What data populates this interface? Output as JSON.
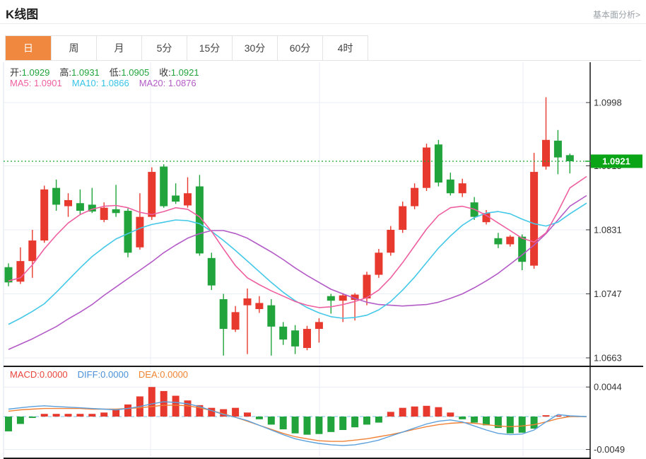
{
  "header": {
    "title": "K线图",
    "link": "基本面分析>"
  },
  "tabs": {
    "items": [
      "日",
      "周",
      "月",
      "5分",
      "15分",
      "30分",
      "60分",
      "4时"
    ],
    "active_index": 0
  },
  "legend": {
    "ohlc": [
      {
        "label": "开:",
        "value": "1.0929"
      },
      {
        "label": "高:",
        "value": "1.0931"
      },
      {
        "label": "低:",
        "value": "1.0905"
      },
      {
        "label": "收:",
        "value": "1.0921"
      }
    ],
    "ma": [
      {
        "label": "MA5:",
        "value": "1.0901",
        "color": "#ee5fa0"
      },
      {
        "label": "MA10:",
        "value": "1.0866",
        "color": "#36c3e6"
      },
      {
        "label": "MA20:",
        "value": "1.0876",
        "color": "#b35bc6"
      }
    ]
  },
  "macd_legend": [
    {
      "label": "MACD:",
      "value": "0.0000",
      "color": "#e8453c"
    },
    {
      "label": "DIFF:",
      "value": "0.0000",
      "color": "#4a90d9"
    },
    {
      "label": "DEA:",
      "value": "0.0000",
      "color": "#ef8432"
    }
  ],
  "price_badge": "1.0921",
  "colors": {
    "up_red": "#e8392e",
    "down_green": "#21a43c",
    "badge_green": "#0aa516",
    "price_line_green": "#19a82c",
    "ma5": "#ee5fa0",
    "ma10": "#44c8e8",
    "ma20": "#b35bc6",
    "diff_line": "#5ba0dc",
    "dea_line": "#f08238",
    "grid": "#e9eef4",
    "axis_text": "#333333",
    "border_dark": "#1a1a1a",
    "zero_dash": "#a9d6f0",
    "tab_active": "#f0883f"
  },
  "chart_data": {
    "type": "candlestick+macd",
    "title": "K线图",
    "last_price": 1.0921,
    "y_axis": {
      "ticks": [
        1.0998,
        1.0915,
        1.0831,
        1.0747,
        1.0663
      ],
      "hidden_tick_index": 1
    },
    "candles": [
      [
        1.0782,
        1.0787,
        1.0757,
        1.0762
      ],
      [
        1.0763,
        1.0808,
        1.076,
        1.079
      ],
      [
        1.079,
        1.0831,
        1.0768,
        1.0817
      ],
      [
        1.0817,
        1.0889,
        1.0814,
        1.0884
      ],
      [
        1.0886,
        1.0897,
        1.0856,
        1.0864
      ],
      [
        1.0862,
        1.0879,
        1.0848,
        1.087
      ],
      [
        1.0866,
        1.0884,
        1.0851,
        1.0856
      ],
      [
        1.0864,
        1.0886,
        1.0853,
        1.0855
      ],
      [
        1.0844,
        1.0867,
        1.0841,
        1.086
      ],
      [
        1.0858,
        1.089,
        1.0848,
        1.0853
      ],
      [
        1.0856,
        1.0859,
        1.0795,
        1.0801
      ],
      [
        1.0808,
        1.0879,
        1.0805,
        1.0848
      ],
      [
        1.0848,
        1.0913,
        1.0844,
        1.0907
      ],
      [
        1.0914,
        1.0917,
        1.086,
        1.0862
      ],
      [
        1.0876,
        1.0892,
        1.0865,
        1.0868
      ],
      [
        1.0863,
        1.09,
        1.086,
        1.0879
      ],
      [
        1.0888,
        1.0903,
        1.0797,
        1.08
      ],
      [
        1.0794,
        1.0801,
        1.0752,
        1.0758
      ],
      [
        1.074,
        1.0747,
        1.0666,
        1.0701
      ],
      [
        1.07,
        1.0731,
        1.0697,
        1.0723
      ],
      [
        1.0732,
        1.0754,
        1.0668,
        1.0741
      ],
      [
        1.0727,
        1.0744,
        1.0722,
        1.0735
      ],
      [
        1.0732,
        1.074,
        1.0666,
        1.0704
      ],
      [
        1.0704,
        1.071,
        1.068,
        1.0687
      ],
      [
        1.0699,
        1.0706,
        1.0668,
        1.0678
      ],
      [
        1.0676,
        1.0705,
        1.0673,
        1.0701
      ],
      [
        1.0701,
        1.0715,
        1.0683,
        1.071
      ],
      [
        1.0744,
        1.0747,
        1.0721,
        1.0738
      ],
      [
        1.0738,
        1.0748,
        1.071,
        1.0745
      ],
      [
        1.0739,
        1.0748,
        1.0712,
        1.0746
      ],
      [
        1.0741,
        1.0776,
        1.0732,
        1.0772
      ],
      [
        1.0772,
        1.0806,
        1.0768,
        1.0801
      ],
      [
        1.0801,
        1.0836,
        1.0797,
        1.0831
      ],
      [
        1.0831,
        1.0868,
        1.0827,
        1.0862
      ],
      [
        1.0862,
        1.0892,
        1.0858,
        1.0886
      ],
      [
        1.0886,
        1.0944,
        1.0882,
        1.0939
      ],
      [
        1.0943,
        1.0949,
        1.0888,
        1.0893
      ],
      [
        1.0897,
        1.0906,
        1.0876,
        1.0879
      ],
      [
        1.0879,
        1.0898,
        1.0874,
        1.0892
      ],
      [
        1.0867,
        1.0874,
        1.0844,
        1.0848
      ],
      [
        1.0841,
        1.0857,
        1.0838,
        1.0853
      ],
      [
        1.082,
        1.0827,
        1.0807,
        1.0812
      ],
      [
        1.0812,
        1.0824,
        1.0809,
        1.0822
      ],
      [
        1.0822,
        1.0825,
        1.0778,
        1.0789
      ],
      [
        1.0784,
        1.0932,
        1.078,
        1.0907
      ],
      [
        1.0914,
        1.1005,
        1.091,
        1.0949
      ],
      [
        1.0948,
        1.0962,
        1.0904,
        1.0926
      ],
      [
        1.0929,
        1.0931,
        1.0905,
        1.0921
      ]
    ],
    "ma5": [
      1.0764,
      1.0768,
      1.0785,
      1.0806,
      1.0824,
      1.084,
      1.0851,
      1.0858,
      1.0862,
      1.0863,
      1.086,
      1.0854,
      1.0851,
      1.0855,
      1.086,
      1.0858,
      1.0848,
      1.0829,
      1.0806,
      1.0784,
      1.0768,
      1.0759,
      1.0751,
      1.0744,
      1.0737,
      1.0732,
      1.0729,
      1.073,
      1.0733,
      1.0737,
      1.0742,
      1.0752,
      1.0768,
      1.0788,
      1.081,
      1.0832,
      1.085,
      1.086,
      1.0862,
      1.0858,
      1.085,
      1.084,
      1.083,
      1.082,
      1.0815,
      1.0827,
      1.0855,
      1.0886
    ],
    "ma10": [
      1.0707,
      1.0715,
      1.0724,
      1.0734,
      1.0749,
      1.0765,
      1.0781,
      1.0796,
      1.0808,
      1.0819,
      1.0826,
      1.0833,
      1.0838,
      1.0841,
      1.0844,
      1.0843,
      1.0839,
      1.0829,
      1.0817,
      1.0804,
      1.079,
      1.0776,
      1.0762,
      1.0749,
      1.0738,
      1.0729,
      1.0722,
      1.0717,
      1.0715,
      1.0716,
      1.0719,
      1.0726,
      1.0737,
      1.0752,
      1.0769,
      1.0788,
      1.0807,
      1.0823,
      1.0837,
      1.0847,
      1.0853,
      1.0855,
      1.0852,
      1.0845,
      1.0839,
      1.0836,
      1.0841,
      1.0852
    ],
    "ma20": [
      1.0674,
      1.0681,
      1.0688,
      1.0696,
      1.0704,
      1.0714,
      1.0723,
      1.0733,
      1.0745,
      1.0756,
      1.0767,
      1.0778,
      1.0789,
      1.0801,
      1.0811,
      1.082,
      1.0826,
      1.083,
      1.083,
      1.0826,
      1.082,
      1.0811,
      1.0802,
      1.0792,
      1.0781,
      1.0771,
      1.0762,
      1.0753,
      1.0747,
      1.0741,
      1.0736,
      1.0733,
      1.0732,
      1.0731,
      1.0732,
      1.0733,
      1.0736,
      1.0741,
      1.0747,
      1.0755,
      1.0764,
      1.0774,
      1.0786,
      1.0798,
      1.0811,
      1.0826,
      1.0844,
      1.0862
    ],
    "ma_end": {
      "ma5": 1.0901,
      "ma10": 1.0866,
      "ma20": 1.0876
    },
    "macd": {
      "ticks": [
        0.0044,
        -0.0049
      ],
      "histogram": [
        -0.0022,
        -0.0011,
        -0.0002,
        0.0004,
        0.0004,
        0.0004,
        0.0004,
        0.0004,
        0.0006,
        0.001,
        0.0018,
        0.003,
        0.0044,
        0.0038,
        0.0031,
        0.0024,
        0.0017,
        0.0013,
        0.0011,
        0.0013,
        0.0006,
        -0.0004,
        -0.0012,
        -0.0019,
        -0.0025,
        -0.0027,
        -0.0026,
        -0.0023,
        -0.002,
        -0.0016,
        -0.0012,
        -0.0009,
        0.0007,
        0.0013,
        0.0015,
        0.0016,
        0.0014,
        0.0006,
        -0.0004,
        -0.0009,
        -0.0013,
        -0.0017,
        -0.0025,
        -0.0024,
        -0.0018,
        0.0002,
        0.0001,
        0.0
      ],
      "diff": [
        0.0011,
        0.0013,
        0.0015,
        0.0016,
        0.0015,
        0.0014,
        0.0013,
        0.0012,
        0.0011,
        0.001,
        0.0012,
        0.0015,
        0.0019,
        0.0022,
        0.0021,
        0.0019,
        0.0015,
        0.0009,
        0.0003,
        -0.0001,
        -0.0006,
        -0.0013,
        -0.002,
        -0.0027,
        -0.0033,
        -0.0037,
        -0.004,
        -0.0042,
        -0.0043,
        -0.0042,
        -0.0039,
        -0.0035,
        -0.0029,
        -0.0023,
        -0.0017,
        -0.0011,
        -0.0007,
        -0.0005,
        -0.0008,
        -0.0014,
        -0.002,
        -0.0025,
        -0.0027,
        -0.0026,
        -0.002,
        -0.0008,
        0.0003,
        0.0001
      ],
      "dea": [
        0.0008,
        0.001,
        0.0011,
        0.0012,
        0.0012,
        0.0012,
        0.0012,
        0.0011,
        0.0011,
        0.0011,
        0.0012,
        0.0013,
        0.0015,
        0.0017,
        0.0017,
        0.0016,
        0.0013,
        0.0009,
        0.0004,
        -0.0001,
        -0.0007,
        -0.0013,
        -0.0019,
        -0.0025,
        -0.003,
        -0.0033,
        -0.0036,
        -0.0037,
        -0.0037,
        -0.0035,
        -0.0033,
        -0.003,
        -0.0027,
        -0.0023,
        -0.0019,
        -0.0015,
        -0.0012,
        -0.001,
        -0.0009,
        -0.001,
        -0.0012,
        -0.0014,
        -0.0015,
        -0.0014,
        -0.0012,
        -0.0008,
        -0.0003,
        0.0
      ]
    }
  }
}
